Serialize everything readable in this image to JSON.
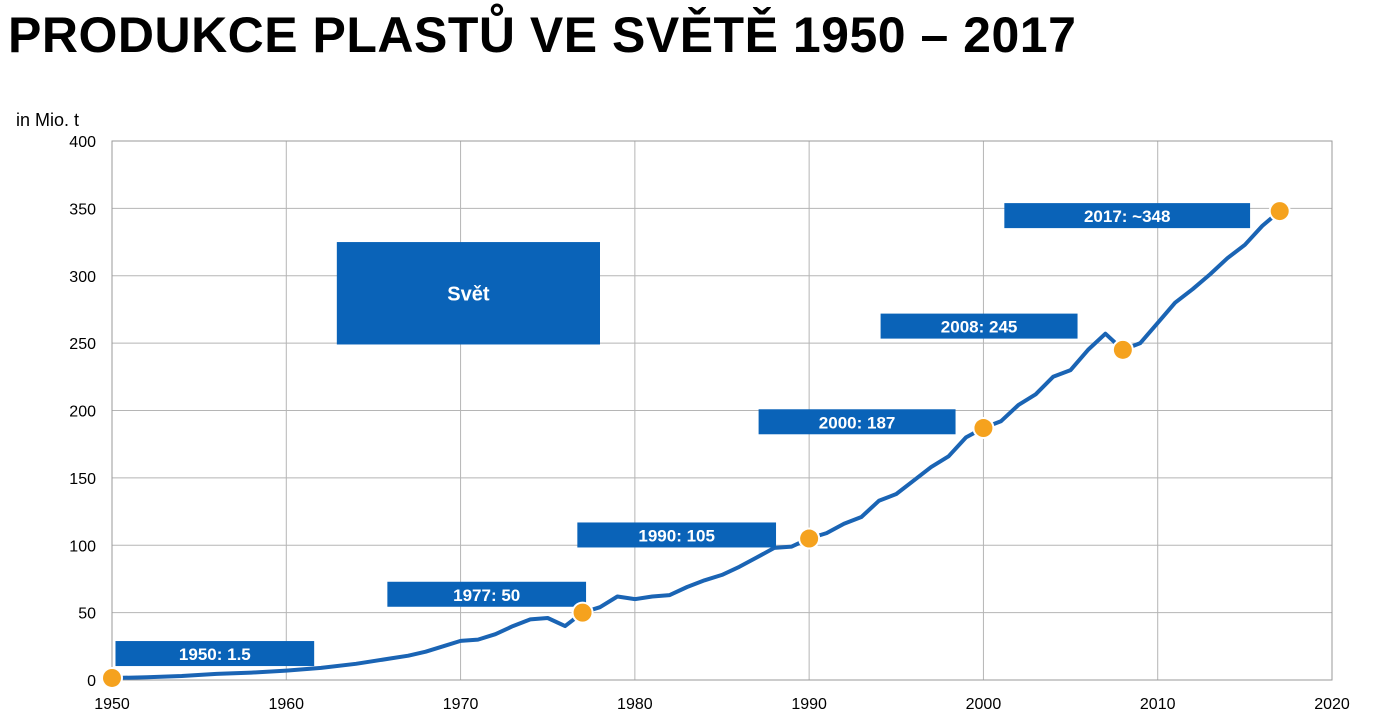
{
  "chart_data": {
    "type": "line",
    "title": "PRODUKCE PLASTŮ VE SVĚTĚ 1950 – 2017",
    "ylabel": "in Mio. t",
    "xlabel": "",
    "xlim": [
      1950,
      2020
    ],
    "ylim": [
      0,
      400
    ],
    "x_ticks": [
      1950,
      1960,
      1970,
      1980,
      1990,
      2000,
      2010,
      2020
    ],
    "y_ticks": [
      0,
      50,
      100,
      150,
      200,
      250,
      300,
      350,
      400
    ],
    "grid": true,
    "line_color": "#1a64b4",
    "marker_color": "#f5a21e",
    "label_box_color": "#0a63b8",
    "region_label": "Svět",
    "series": [
      {
        "x": [
          1950,
          1952,
          1954,
          1956,
          1958,
          1960,
          1962,
          1964,
          1966,
          1967,
          1968,
          1969,
          1970,
          1971,
          1972,
          1973,
          1974,
          1975,
          1976,
          1977,
          1978,
          1979,
          1980,
          1981,
          1982,
          1983,
          1984,
          1985,
          1986,
          1987,
          1988,
          1989,
          1990,
          1991,
          1992,
          1993,
          1994,
          1995,
          1996,
          1997,
          1998,
          1999,
          2000,
          2001,
          2002,
          2003,
          2004,
          2005,
          2006,
          2007,
          2008,
          2009,
          2010,
          2011,
          2012,
          2013,
          2014,
          2015,
          2016,
          2017
        ],
        "values": [
          1.5,
          2,
          3,
          4.5,
          5.5,
          7,
          9,
          12,
          16,
          18,
          21,
          25,
          29,
          30,
          34,
          40,
          45,
          46,
          40,
          50,
          54,
          62,
          60,
          62,
          63,
          69,
          74,
          78,
          84,
          91,
          98,
          99,
          105,
          109,
          116,
          121,
          133,
          138,
          148,
          158,
          166,
          180,
          187,
          192,
          204,
          212,
          225,
          230,
          245,
          257,
          245,
          250,
          265,
          280,
          290,
          301,
          313,
          323,
          337,
          348
        ]
      }
    ],
    "highlights": [
      {
        "x": 1950,
        "y": 1.5,
        "label": "1950: 1.5",
        "box_from": 1950.2,
        "box_to": 1961.6,
        "box_y": 20
      },
      {
        "x": 1977,
        "y": 50,
        "label": "1977: 50",
        "box_from": 1965.8,
        "box_to": 1977.2,
        "box_y": 64
      },
      {
        "x": 1990,
        "y": 105,
        "label": "1990: 105",
        "box_from": 1976.7,
        "box_to": 1988.1,
        "box_y": 108
      },
      {
        "x": 2000,
        "y": 187,
        "label": "2000: 187",
        "box_from": 1987.1,
        "box_to": 1998.4,
        "box_y": 192
      },
      {
        "x": 2008,
        "y": 245,
        "label": "2008: 245",
        "box_from": 1994.1,
        "box_to": 2005.4,
        "box_y": 263
      },
      {
        "x": 2017,
        "y": 348,
        "label": "2017: ~348",
        "box_from": 2001.2,
        "box_to": 2015.3,
        "box_y": 345
      }
    ]
  }
}
